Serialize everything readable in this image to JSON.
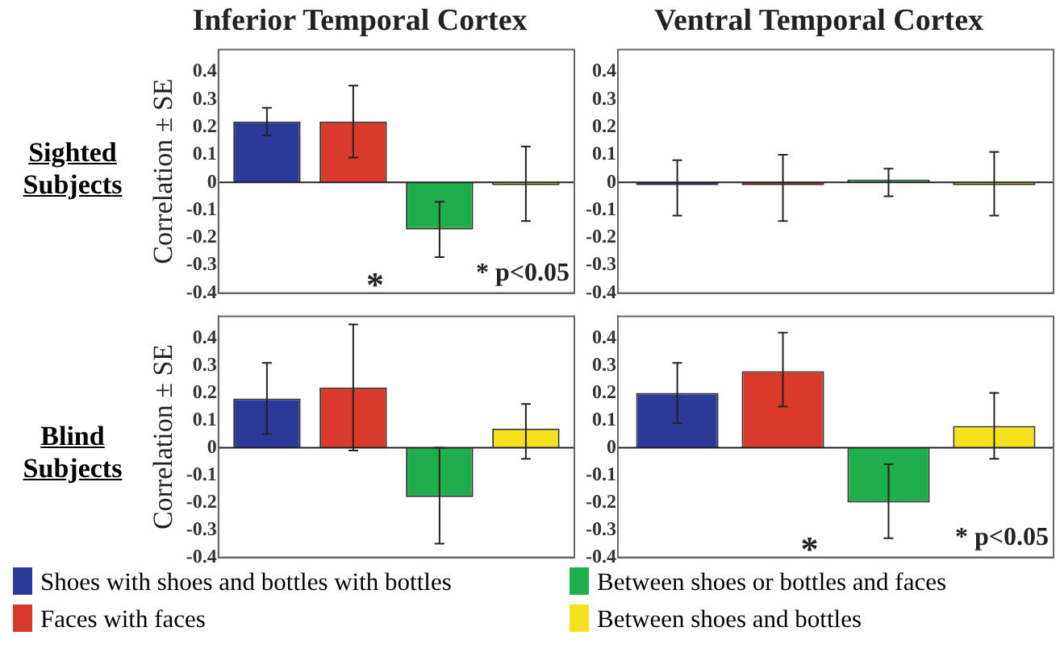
{
  "chart_data": [
    {
      "type": "bar",
      "title": "Inferior Temporal Cortex",
      "ylabel": "Correlation ± SE",
      "annotations": [
        "Sighted Subjects",
        "*",
        "* p<0.05"
      ],
      "categories": [
        null
      ],
      "ylim": [
        -0.4,
        0.48
      ],
      "yticks": [
        -0.4,
        -0.3,
        -0.2,
        -0.1,
        0,
        0.1,
        0.2,
        0.3,
        0.4
      ],
      "legend": "bottom",
      "series": [
        {
          "name": "Shoes with shoes and bottles with bottles",
          "color": "#2b3a9a",
          "values": [
            0.22
          ],
          "errors": [
            [
              0.17,
              0.27
            ]
          ]
        },
        {
          "name": "Faces with faces",
          "color": "#d93a2b",
          "values": [
            0.22
          ],
          "errors": [
            [
              0.09,
              0.35
            ]
          ]
        },
        {
          "name": "Between shoes or bottles and faces",
          "color": "#1fae4c",
          "values": [
            -0.17
          ],
          "errors": [
            [
              -0.27,
              -0.07
            ]
          ]
        },
        {
          "name": "Between shoes and bottles",
          "color": "#f5e11c",
          "values": [
            -0.01
          ],
          "errors": [
            [
              -0.14,
              0.13
            ]
          ]
        }
      ]
    },
    {
      "type": "bar",
      "title": "Ventral Temporal Cortex",
      "categories": [
        null
      ],
      "ylim": [
        -0.4,
        0.48
      ],
      "yticks": [
        -0.4,
        -0.3,
        -0.2,
        -0.1,
        0,
        0.1,
        0.2,
        0.3,
        0.4
      ],
      "series": [
        {
          "color": "#2b3a9a",
          "values": [
            -0.01
          ],
          "errors": [
            [
              -0.12,
              0.08
            ]
          ]
        },
        {
          "color": "#d93a2b",
          "values": [
            -0.01
          ],
          "errors": [
            [
              -0.14,
              0.1
            ]
          ]
        },
        {
          "color": "#1fae4c",
          "values": [
            0.01
          ],
          "errors": [
            [
              -0.05,
              0.05
            ]
          ]
        },
        {
          "color": "#f5e11c",
          "values": [
            -0.01
          ],
          "errors": [
            [
              -0.12,
              0.11
            ]
          ]
        }
      ]
    },
    {
      "type": "bar",
      "ylabel": "Correlation ± SE",
      "annotations": [
        "Blind Subjects"
      ],
      "categories": [
        null
      ],
      "ylim": [
        -0.4,
        0.48
      ],
      "yticks": [
        -0.4,
        -0.3,
        -0.2,
        -0.1,
        0,
        0.1,
        0.2,
        0.3,
        0.4
      ],
      "series": [
        {
          "color": "#2b3a9a",
          "values": [
            0.18
          ],
          "errors": [
            [
              0.05,
              0.31
            ]
          ]
        },
        {
          "color": "#d93a2b",
          "values": [
            0.22
          ],
          "errors": [
            [
              -0.01,
              0.45
            ]
          ]
        },
        {
          "color": "#1fae4c",
          "values": [
            -0.18
          ],
          "errors": [
            [
              -0.35,
              0
            ]
          ]
        },
        {
          "color": "#f5e11c",
          "values": [
            0.07
          ],
          "errors": [
            [
              -0.04,
              0.16
            ]
          ]
        }
      ]
    },
    {
      "type": "bar",
      "annotations": [
        "*",
        "* p<0.05"
      ],
      "categories": [
        null
      ],
      "ylim": [
        -0.4,
        0.48
      ],
      "yticks": [
        -0.4,
        -0.3,
        -0.2,
        -0.1,
        0,
        0.1,
        0.2,
        0.3,
        0.4
      ],
      "series": [
        {
          "color": "#2b3a9a",
          "values": [
            0.2
          ],
          "errors": [
            [
              0.09,
              0.31
            ]
          ]
        },
        {
          "color": "#d93a2b",
          "values": [
            0.28
          ],
          "errors": [
            [
              0.15,
              0.42
            ]
          ]
        },
        {
          "color": "#1fae4c",
          "values": [
            -0.2
          ],
          "errors": [
            [
              -0.33,
              -0.06
            ]
          ]
        },
        {
          "color": "#f5e11c",
          "values": [
            0.08
          ],
          "errors": [
            [
              -0.04,
              0.2
            ]
          ]
        }
      ]
    }
  ]
}
